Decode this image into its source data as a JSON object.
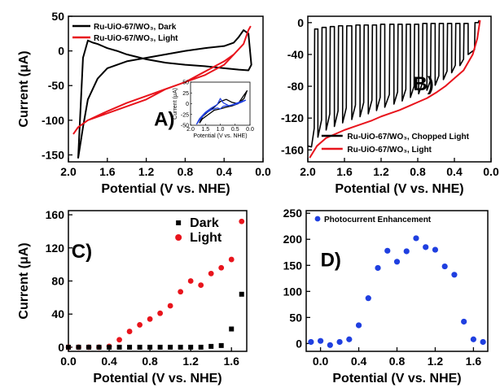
{
  "chart_data": [
    {
      "type": "line",
      "panel_label": "A)",
      "xlabel": "Potential (V vs. NHE)",
      "ylabel": "Current (μA)",
      "xlim": [
        2.0,
        0.0
      ],
      "ylim": [
        -160,
        50
      ],
      "xticks": [
        "2.0",
        "1.6",
        "1.2",
        "0.8",
        "0.4",
        "0.0"
      ],
      "yticks": [
        "50",
        "0",
        "-50",
        "-100",
        "-150"
      ],
      "legend_placement": "top-left",
      "series": [
        {
          "name": "Ru-UiO-67/WO₃, Dark",
          "color": "#000000",
          "x": [
            1.9,
            1.85,
            1.8,
            1.7,
            1.6,
            1.4,
            1.2,
            1.0,
            0.8,
            0.6,
            0.4,
            0.3,
            0.25,
            0.2,
            0.15,
            0.12,
            0.15,
            0.25,
            0.4,
            0.6,
            0.8,
            1.0,
            1.2,
            1.4,
            1.5,
            1.6,
            1.7,
            1.75,
            1.8,
            1.85,
            1.9
          ],
          "y": [
            -155,
            -110,
            -70,
            -40,
            -25,
            -15,
            -10,
            -5,
            0,
            4,
            7,
            12,
            20,
            30,
            25,
            -20,
            -28,
            -27,
            -25,
            -22,
            -20,
            -17,
            -12,
            -5,
            0,
            4,
            10,
            12,
            15,
            -10,
            -155
          ]
        },
        {
          "name": "Ru-UiO-67/WO₃, Light",
          "color": "#e8141c",
          "x": [
            1.95,
            1.9,
            1.8,
            1.6,
            1.4,
            1.2,
            1.0,
            0.8,
            0.6,
            0.4,
            0.3,
            0.2,
            0.15,
            0.13,
            0.15,
            0.2,
            0.3,
            0.4,
            0.6,
            0.8,
            1.0,
            1.2,
            1.4,
            1.6,
            1.8,
            1.9,
            1.95
          ],
          "y": [
            -120,
            -110,
            -100,
            -90,
            -80,
            -70,
            -55,
            -45,
            -35,
            -20,
            -5,
            10,
            30,
            35,
            30,
            10,
            -5,
            -15,
            -30,
            -45,
            -55,
            -65,
            -75,
            -87,
            -100,
            -110,
            -120
          ]
        }
      ],
      "inset": {
        "xticks": [
          "2.0",
          "1.5",
          "1.0",
          "0.5",
          "0.0"
        ],
        "yticks": [
          "50",
          "25",
          "0",
          "-25",
          "-50"
        ],
        "xlabel": "Potential (V vs. NHE)",
        "ylabel": "Current (μA)",
        "xlim": [
          2.0,
          0.0
        ],
        "ylim": [
          -50,
          50
        ],
        "series": [
          {
            "color": "#000000",
            "x": [
              1.7,
              1.6,
              1.4,
              1.2,
              1.0,
              0.8,
              0.6,
              0.4,
              0.2,
              0.1,
              0.2,
              0.4,
              0.6,
              0.8,
              1.0,
              1.2,
              1.4,
              1.6,
              1.7
            ],
            "y": [
              -45,
              -30,
              -18,
              -8,
              5,
              10,
              3,
              0,
              20,
              30,
              12,
              0,
              -5,
              -8,
              -12,
              -15,
              -25,
              -35,
              -45
            ]
          },
          {
            "color": "#1f3fe0",
            "x": [
              1.8,
              1.7,
              1.5,
              1.3,
              1.1,
              1.0,
              0.9,
              0.7,
              0.5,
              0.3,
              0.15,
              0.3,
              0.5,
              0.7,
              0.9,
              1.0,
              1.1,
              1.3,
              1.5,
              1.7,
              1.8
            ],
            "y": [
              -48,
              -35,
              -20,
              -10,
              -2,
              12,
              2,
              -5,
              0,
              5,
              8,
              3,
              -2,
              -4,
              -6,
              -12,
              -10,
              -14,
              -22,
              -38,
              -48
            ]
          }
        ]
      }
    },
    {
      "type": "line",
      "panel_label": "B)",
      "xlabel": "Potential (V vs. NHE)",
      "ylabel": "",
      "xlim": [
        2.0,
        0.0
      ],
      "ylim": [
        -175,
        8
      ],
      "xticks": [
        "2.0",
        "1.6",
        "1.2",
        "0.8",
        "0.4",
        "0.0"
      ],
      "yticks": [
        "0",
        "-40",
        "-80",
        "-120",
        "-160"
      ],
      "legend_placement": "bottom-right",
      "series": [
        {
          "name": "Ru-UiO-67/WO₃, Chopped Light",
          "color": "#000000",
          "chop_on": [
            1.96,
            1.89,
            1.8,
            1.71,
            1.62,
            1.52,
            1.43,
            1.34,
            1.25,
            1.16,
            1.06,
            0.97,
            0.88,
            0.79,
            0.7,
            0.61,
            0.52,
            0.43,
            0.34,
            0.25
          ],
          "chop_off": [
            1.93,
            1.85,
            1.76,
            1.67,
            1.58,
            1.48,
            1.39,
            1.3,
            1.21,
            1.11,
            1.02,
            0.93,
            0.84,
            0.75,
            0.66,
            0.57,
            0.48,
            0.39,
            0.3
          ],
          "dark_y": [
            -8,
            -6,
            -5,
            -4,
            -4,
            -3,
            -3,
            -3,
            -2,
            -2,
            -2,
            -2,
            -2,
            -1,
            -1,
            -1,
            -1,
            -1,
            -1,
            0
          ]
        },
        {
          "name": "Ru-UiO-67/WO₃, Light",
          "color": "#e8141c",
          "x": [
            1.98,
            1.9,
            1.8,
            1.7,
            1.6,
            1.5,
            1.4,
            1.3,
            1.2,
            1.1,
            1.0,
            0.9,
            0.8,
            0.7,
            0.6,
            0.5,
            0.4,
            0.3,
            0.2,
            0.15,
            0.12
          ],
          "y": [
            -170,
            -155,
            -145,
            -140,
            -135,
            -131,
            -127,
            -123,
            -118,
            -114,
            -110,
            -105,
            -100,
            -95,
            -88,
            -80,
            -70,
            -60,
            -40,
            -20,
            3
          ]
        }
      ]
    },
    {
      "type": "scatter",
      "panel_label": "C)",
      "xlabel": "Potential (V vs. NHE)",
      "ylabel": "Current (μA)",
      "xlim": [
        0.0,
        1.75
      ],
      "ylim": [
        -5,
        165
      ],
      "xticks": [
        "0.0",
        "0.4",
        "0.8",
        "1.2",
        "1.6"
      ],
      "yticks": [
        "0",
        "40",
        "80",
        "120",
        "160"
      ],
      "legend_placement": "top-right",
      "series": [
        {
          "name": "Dark",
          "color": "#000000",
          "marker": "square",
          "x": [
            0.0,
            0.1,
            0.2,
            0.3,
            0.4,
            0.5,
            0.6,
            0.7,
            0.8,
            0.9,
            1.0,
            1.1,
            1.2,
            1.3,
            1.4,
            1.5,
            1.6,
            1.7
          ],
          "y": [
            0,
            0,
            0,
            0,
            0,
            0,
            0,
            0,
            0,
            0,
            0,
            0,
            0,
            0,
            1,
            2,
            22,
            64
          ]
        },
        {
          "name": "Light",
          "color": "#e8141c",
          "marker": "circle",
          "x": [
            0.0,
            0.1,
            0.2,
            0.3,
            0.4,
            0.5,
            0.6,
            0.7,
            0.8,
            0.9,
            1.0,
            1.1,
            1.2,
            1.3,
            1.4,
            1.5,
            1.6,
            1.7
          ],
          "y": [
            0,
            0,
            0,
            0,
            1,
            9,
            19,
            27,
            34,
            41,
            50,
            67,
            80,
            75,
            89,
            96,
            106,
            152
          ]
        }
      ]
    },
    {
      "type": "scatter",
      "panel_label": "D)",
      "xlabel": "Potential (V vs. NHE)",
      "ylabel": "",
      "xlim": [
        -0.15,
        1.75
      ],
      "ylim": [
        -15,
        255
      ],
      "xticks": [
        "0.0",
        "0.4",
        "0.8",
        "1.2",
        "1.6"
      ],
      "yticks": [
        "0",
        "50",
        "100",
        "150",
        "200",
        "250"
      ],
      "legend_placement": "top",
      "series": [
        {
          "name": "Photocurrent Enhancement",
          "color": "#1f3fe0",
          "marker": "circle",
          "x": [
            -0.1,
            0.0,
            0.1,
            0.2,
            0.3,
            0.4,
            0.5,
            0.6,
            0.7,
            0.8,
            0.9,
            1.0,
            1.1,
            1.2,
            1.3,
            1.4,
            1.5,
            1.6,
            1.7
          ],
          "y": [
            3,
            5,
            -3,
            3,
            8,
            35,
            87,
            145,
            178,
            157,
            177,
            202,
            185,
            180,
            148,
            132,
            42,
            8,
            3
          ]
        }
      ]
    }
  ]
}
